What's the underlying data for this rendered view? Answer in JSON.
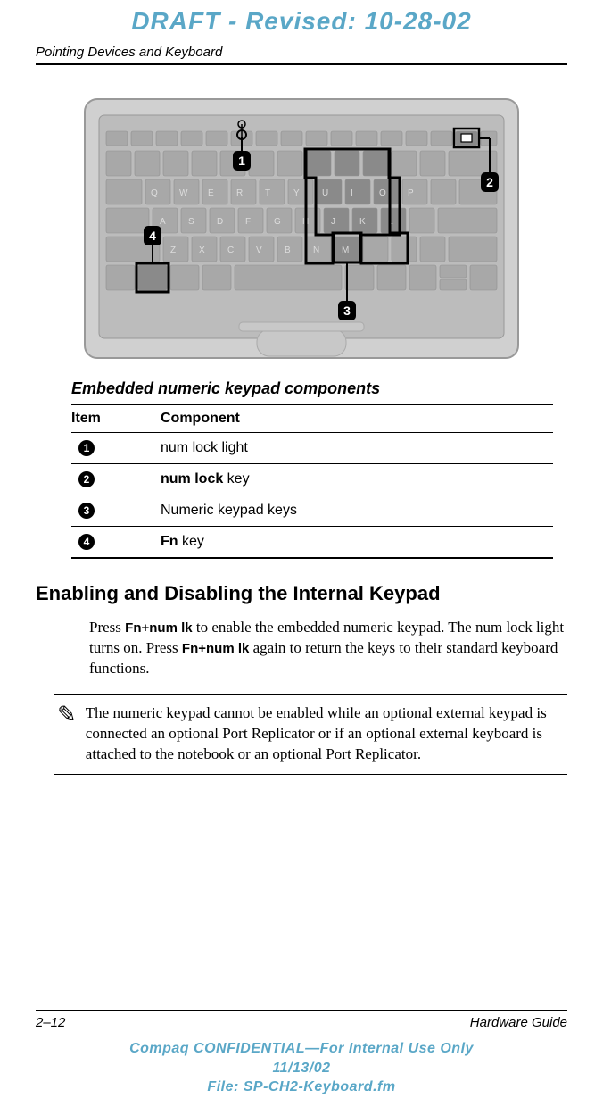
{
  "colors": {
    "draft_color": "#5aa7c7",
    "confidential_color": "#5aa7c7",
    "kb_body": "#d0d0d0",
    "kb_inner": "#bcbcbc",
    "kb_key": "#a8a8a8",
    "kb_key_dark": "#8a8a8a",
    "kb_highlight_stroke": "#000000",
    "callout_fill": "#000000",
    "callout_text": "#ffffff",
    "num_lock_light": "#ffffff"
  },
  "draft_banner": "DRAFT - Revised: 10-28-02",
  "header_label": "Pointing Devices and Keyboard",
  "figure": {
    "caption": "Embedded numeric keypad components",
    "callouts": [
      "1",
      "2",
      "3",
      "4"
    ]
  },
  "table": {
    "headers": [
      "Item",
      "Component"
    ],
    "rows": [
      {
        "num": "1",
        "html": "num lock light"
      },
      {
        "num": "2",
        "html": "<span class='sans-bold'>num lock</span> key"
      },
      {
        "num": "3",
        "html": "Numeric keypad keys"
      },
      {
        "num": "4",
        "html": "<span class='sans-bold'>Fn</span> key"
      }
    ]
  },
  "section_heading": "Enabling and Disabling the Internal Keypad",
  "body_html": "Press <span class='inline-sans-bold'>Fn+num lk</span> to enable the embedded numeric keypad. The num lock light turns on. Press <span class='inline-sans-bold'>Fn+num lk</span> again to return the keys to their standard keyboard functions.",
  "note_icon": "✎",
  "note_text": "The numeric keypad cannot be enabled while an optional external keypad is connected an optional Port Replicator or if an optional external keyboard is attached to the notebook or an optional Port Replicator.",
  "footer": {
    "page_num": "2–12",
    "guide": "Hardware Guide",
    "conf_line1": "Compaq CONFIDENTIAL—For Internal Use Only",
    "conf_line2": "11/13/02",
    "conf_line3": "File: SP-CH2-Keyboard.fm"
  }
}
